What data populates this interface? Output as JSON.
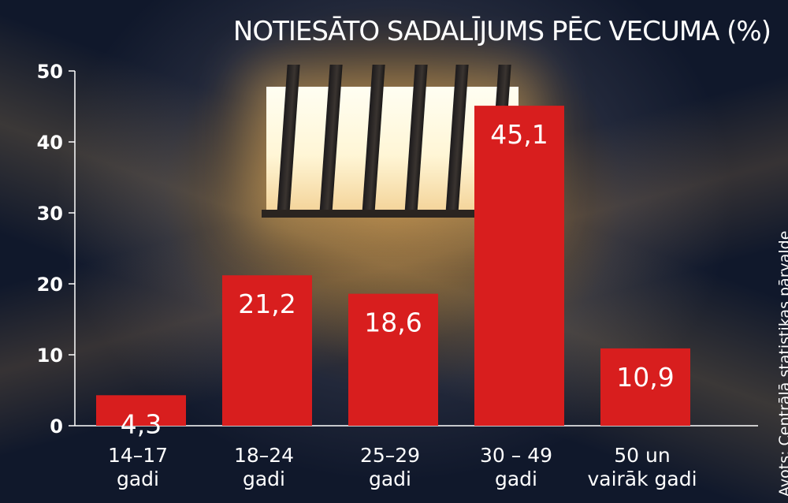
{
  "chart_data": {
    "type": "bar",
    "title": "NOTIESĀTO SADALĪJUMS PĒC VECUMA (%)",
    "categories": [
      [
        "14–17",
        "gadi"
      ],
      [
        "18–24",
        "gadi"
      ],
      [
        "25–29",
        "gadi"
      ],
      [
        "30 – 49",
        "gadi"
      ],
      [
        "50 un",
        "vairāk gadi"
      ]
    ],
    "values": [
      4.3,
      21.2,
      18.6,
      45.1,
      10.9
    ],
    "data_labels": [
      "4,3",
      "21,2",
      "18,6",
      "45,1",
      "10,9"
    ],
    "yticks": [
      0,
      10,
      20,
      30,
      40,
      50
    ],
    "ylim": [
      0,
      50
    ],
    "xlabel": "",
    "ylabel": "",
    "grid": false,
    "bar_color": "#d81e1e",
    "source": "Avots: Centrālā  statistikas pārvalde"
  }
}
